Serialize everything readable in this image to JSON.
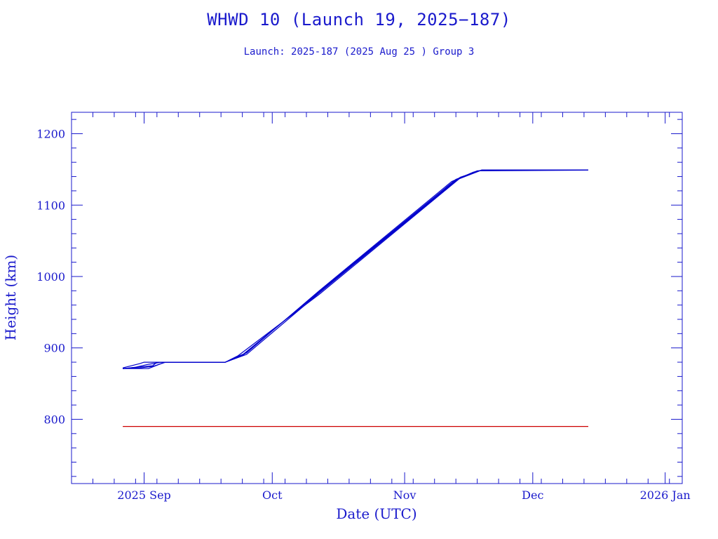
{
  "chart_data": {
    "type": "line",
    "title": "WHWD 10 (Launch 19, 2025−187)",
    "subtitle": "Launch: 2025-187  (2025 Aug 25 )  Group 3",
    "xlabel": "Date (UTC)",
    "ylabel": "Height (km)",
    "x_axis": {
      "type": "date",
      "range": [
        "2025-08-15",
        "2026-01-05"
      ],
      "ticks": [
        {
          "date": "2025-09-01",
          "label": "2025 Sep"
        },
        {
          "date": "2025-10-01",
          "label": "Oct"
        },
        {
          "date": "2025-11-01",
          "label": "Nov"
        },
        {
          "date": "2025-12-01",
          "label": "Dec"
        },
        {
          "date": "2026-01-01",
          "label": "2026 Jan"
        }
      ]
    },
    "y_axis": {
      "range": [
        710,
        1230
      ],
      "ticks": [
        800,
        900,
        1000,
        1100,
        1200
      ]
    },
    "series": [
      {
        "color": "#0000cc",
        "points": [
          [
            "2025-08-27",
            871
          ],
          [
            "2025-08-31",
            872
          ],
          [
            "2025-09-03",
            874
          ],
          [
            "2025-09-06",
            880
          ],
          [
            "2025-09-20",
            880
          ],
          [
            "2025-09-24",
            890
          ],
          [
            "2025-10-12",
            978
          ],
          [
            "2025-11-13",
            1135
          ],
          [
            "2025-11-19",
            1149
          ],
          [
            "2025-12-14",
            1149
          ]
        ]
      },
      {
        "color": "#0000cc",
        "points": [
          [
            "2025-08-27",
            872
          ],
          [
            "2025-08-31",
            878
          ],
          [
            "2025-09-01",
            880
          ],
          [
            "2025-09-20",
            880
          ],
          [
            "2025-09-22",
            886
          ],
          [
            "2025-09-25",
            893
          ],
          [
            "2025-10-12",
            980
          ],
          [
            "2025-11-12",
            1133
          ],
          [
            "2025-11-17",
            1146
          ],
          [
            "2025-11-19",
            1149
          ],
          [
            "2025-12-14",
            1149
          ]
        ]
      },
      {
        "color": "#0000cc",
        "points": [
          [
            "2025-08-27",
            871
          ],
          [
            "2025-09-02",
            871
          ],
          [
            "2025-09-05",
            878
          ],
          [
            "2025-09-06",
            880
          ],
          [
            "2025-09-20",
            880
          ],
          [
            "2025-09-23",
            889
          ],
          [
            "2025-10-12",
            975
          ],
          [
            "2025-11-14",
            1138
          ],
          [
            "2025-11-19",
            1149
          ],
          [
            "2025-12-14",
            1149
          ]
        ]
      },
      {
        "color": "#0000cc",
        "points": [
          [
            "2025-08-27",
            871
          ],
          [
            "2025-09-03",
            875
          ],
          [
            "2025-09-04",
            880
          ],
          [
            "2025-09-20",
            880
          ],
          [
            "2025-09-25",
            891
          ],
          [
            "2025-10-12",
            977
          ],
          [
            "2025-11-14",
            1139
          ],
          [
            "2025-11-19",
            1149
          ],
          [
            "2025-12-14",
            1149
          ]
        ]
      },
      {
        "color": "#0000cc",
        "points": [
          [
            "2025-08-27",
            871
          ],
          [
            "2025-08-30",
            873
          ],
          [
            "2025-09-02",
            877
          ],
          [
            "2025-09-05",
            880
          ],
          [
            "2025-09-20",
            880
          ],
          [
            "2025-09-24",
            889
          ],
          [
            "2025-10-12",
            979
          ],
          [
            "2025-11-13",
            1136
          ],
          [
            "2025-11-18",
            1148
          ],
          [
            "2025-12-14",
            1149
          ]
        ]
      },
      {
        "color": "#cc0000",
        "points": [
          [
            "2025-08-27",
            790
          ],
          [
            "2025-12-14",
            790
          ]
        ]
      }
    ]
  }
}
